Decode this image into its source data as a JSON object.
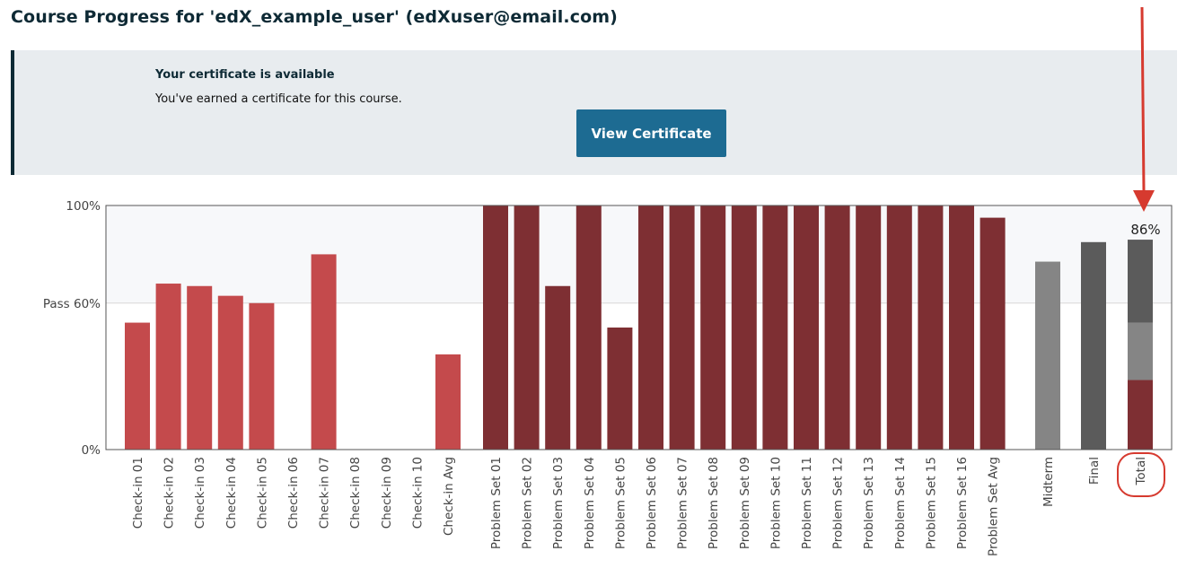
{
  "header": {
    "title": "Course Progress for 'edX_example_user' (edXuser@email.com)"
  },
  "certificate": {
    "heading": "Your certificate is available",
    "message": "You've earned a certificate for this course.",
    "button_label": "View Certificate",
    "button_color": "#1d6b92"
  },
  "chart_data": {
    "type": "bar",
    "ylim": [
      0,
      100
    ],
    "yticks": [
      {
        "value": 0,
        "label": "0%"
      },
      {
        "value": 60,
        "label": "Pass 60%"
      },
      {
        "value": 100,
        "label": "100%"
      }
    ],
    "pass_line": 60,
    "colors": {
      "checkin": "#c44a4c",
      "problemset": "#7e2f33",
      "midterm": "#858585",
      "final": "#5b5b5b",
      "plot_bg_above_pass": "#f7f8fa",
      "annotation": "#d63a2f"
    },
    "categories": [
      "Check-in 01",
      "Check-in 02",
      "Check-in 03",
      "Check-in 04",
      "Check-in 05",
      "Check-in 06",
      "Check-in 07",
      "Check-in 08",
      "Check-in 09",
      "Check-in 10",
      "Check-in Avg",
      "Problem Set 01",
      "Problem Set 02",
      "Problem Set 03",
      "Problem Set 04",
      "Problem Set 05",
      "Problem Set 06",
      "Problem Set 07",
      "Problem Set 08",
      "Problem Set 09",
      "Problem Set 10",
      "Problem Set 11",
      "Problem Set 12",
      "Problem Set 13",
      "Problem Set 14",
      "Problem Set 15",
      "Problem Set 16",
      "Problem Set Avg",
      "Midterm",
      "Final",
      "Total"
    ],
    "values": [
      52,
      68,
      67,
      63,
      60,
      0,
      80,
      0,
      0,
      0,
      39,
      100,
      100,
      67,
      100,
      50,
      100,
      100,
      100,
      100,
      100,
      100,
      100,
      100,
      100,
      100,
      100,
      95,
      77,
      85,
      86
    ],
    "series_group": [
      "checkin",
      "checkin",
      "checkin",
      "checkin",
      "checkin",
      "checkin",
      "checkin",
      "checkin",
      "checkin",
      "checkin",
      "checkin",
      "problemset",
      "problemset",
      "problemset",
      "problemset",
      "problemset",
      "problemset",
      "problemset",
      "problemset",
      "problemset",
      "problemset",
      "problemset",
      "problemset",
      "problemset",
      "problemset",
      "problemset",
      "problemset",
      "problemset",
      "midterm",
      "final",
      "total"
    ],
    "total_segments": [
      {
        "group": "problemset",
        "value": 28.5
      },
      {
        "group": "midterm",
        "value": 23.5
      },
      {
        "group": "final",
        "value": 34
      }
    ],
    "total_label": "86%",
    "annotation": {
      "type": "arrow-and-circle",
      "target": "Total",
      "color": "#d63a2f"
    }
  }
}
